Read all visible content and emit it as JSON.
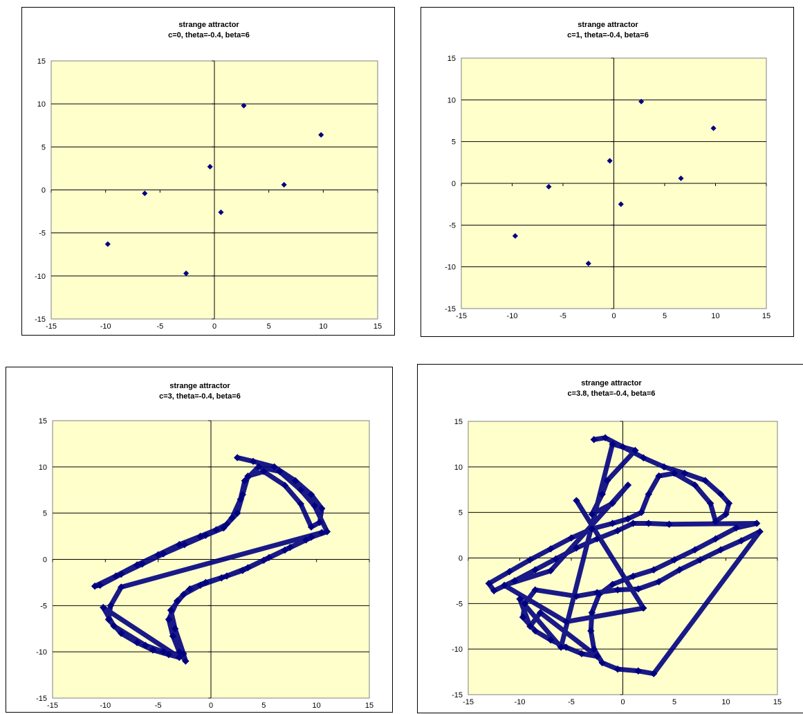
{
  "chart_data": [
    {
      "type": "scatter",
      "title": "strange attractor",
      "subtitle": "c=0,  theta=-0.4, beta=6",
      "xlim": [
        -15,
        15
      ],
      "ylim": [
        -15,
        15
      ],
      "xticks": [
        -15,
        -10,
        -5,
        0,
        5,
        10,
        15
      ],
      "yticks": [
        -15,
        -10,
        -5,
        0,
        5,
        10,
        15
      ],
      "grid": "horizontal",
      "plot_color": "#ffffcc",
      "marker_color": "#000080",
      "points": [
        [
          2.7,
          9.8
        ],
        [
          9.8,
          6.4
        ],
        [
          -0.4,
          2.7
        ],
        [
          6.4,
          0.6
        ],
        [
          -6.4,
          -0.4
        ],
        [
          0.6,
          -2.6
        ],
        [
          -9.8,
          -6.3
        ],
        [
          -2.6,
          -9.7
        ]
      ]
    },
    {
      "type": "scatter",
      "title": "strange attractor",
      "subtitle": "c=1,  theta=-0.4, beta=6",
      "xlim": [
        -15,
        15
      ],
      "ylim": [
        -15,
        15
      ],
      "xticks": [
        -15,
        -10,
        -5,
        0,
        5,
        10,
        15
      ],
      "yticks": [
        -15,
        -10,
        -5,
        0,
        5,
        10,
        15
      ],
      "grid": "horizontal",
      "plot_color": "#ffffcc",
      "marker_color": "#000080",
      "points": [
        [
          2.7,
          9.8
        ],
        [
          9.8,
          6.6
        ],
        [
          -0.4,
          2.7
        ],
        [
          6.6,
          0.6
        ],
        [
          -6.4,
          -0.4
        ],
        [
          0.7,
          -2.5
        ],
        [
          -9.7,
          -6.3
        ],
        [
          -2.5,
          -9.6
        ]
      ]
    },
    {
      "type": "scatter",
      "title": "strange attractor",
      "subtitle": "c=3,  theta=-0.4, beta=6",
      "xlim": [
        -15,
        15
      ],
      "ylim": [
        -15,
        15
      ],
      "xticks": [
        -15,
        -10,
        -5,
        0,
        5,
        10,
        15
      ],
      "yticks": [
        -15,
        -10,
        -5,
        0,
        5,
        10,
        15
      ],
      "grid": "horizontal",
      "plot_color": "#ffffcc",
      "marker_color": "#000080",
      "points": [
        [
          2.5,
          11
        ],
        [
          4,
          10.6
        ],
        [
          6,
          10
        ],
        [
          8,
          8.5
        ],
        [
          9.5,
          7
        ],
        [
          10.5,
          5.5
        ],
        [
          10.3,
          4
        ],
        [
          9.5,
          3.5
        ],
        [
          8.5,
          6
        ],
        [
          7,
          8
        ],
        [
          5,
          9.5
        ],
        [
          3.5,
          9
        ],
        [
          3,
          7
        ],
        [
          2.5,
          5
        ],
        [
          1.5,
          3.8
        ],
        [
          0.5,
          3.2
        ],
        [
          -1,
          2.5
        ],
        [
          -3,
          1.6
        ],
        [
          -5,
          0.5
        ],
        [
          -7,
          -0.6
        ],
        [
          -9,
          -1.8
        ],
        [
          -11,
          -2.9
        ],
        [
          -10.5,
          -2.8
        ],
        [
          -8.5,
          -1.6
        ],
        [
          -6.5,
          -0.5
        ],
        [
          -4.5,
          0.6
        ],
        [
          -2.5,
          1.6
        ],
        [
          -0.5,
          2.6
        ],
        [
          1.2,
          3.4
        ],
        [
          2,
          4.5
        ],
        [
          2.8,
          6.5
        ],
        [
          3.2,
          8.5
        ],
        [
          4.5,
          10
        ],
        [
          6.5,
          9.5
        ],
        [
          8.5,
          7.5
        ],
        [
          9.8,
          5.8
        ],
        [
          11,
          3
        ],
        [
          9.5,
          2.4
        ],
        [
          7.5,
          1.3
        ],
        [
          5.5,
          0.2
        ],
        [
          3.5,
          -0.9
        ],
        [
          1.5,
          -1.8
        ],
        [
          -0.5,
          -2.5
        ],
        [
          -2,
          -3.2
        ],
        [
          -3.2,
          -4.5
        ],
        [
          -4,
          -6.5
        ],
        [
          -3.6,
          -8.3
        ],
        [
          -3,
          -10
        ],
        [
          -2.4,
          -11
        ],
        [
          -2.6,
          -10.2
        ],
        [
          -3.4,
          -7.5
        ],
        [
          -3.8,
          -5.5
        ],
        [
          -2.6,
          -3.8
        ],
        [
          -1,
          -2.8
        ],
        [
          1,
          -2
        ],
        [
          3,
          -1.2
        ],
        [
          5,
          -0.1
        ],
        [
          7,
          1
        ],
        [
          9,
          2.1
        ],
        [
          10.5,
          2.9
        ],
        [
          -8.5,
          -3
        ],
        [
          -9.5,
          -5
        ],
        [
          -9.7,
          -6.5
        ],
        [
          -8.5,
          -8
        ],
        [
          -7,
          -9
        ],
        [
          -5.5,
          -9.8
        ],
        [
          -4,
          -10.3
        ],
        [
          -3,
          -10.6
        ],
        [
          -10.2,
          -5.2
        ],
        [
          -9.2,
          -7.2
        ],
        [
          -6.2,
          -9.3
        ],
        [
          -4.5,
          -10
        ]
      ]
    },
    {
      "type": "scatter",
      "title": "strange attractor",
      "subtitle": "c=3.8,  theta=-0.4, beta=6",
      "xlim": [
        -15,
        15
      ],
      "ylim": [
        -15,
        15
      ],
      "xticks": [
        -15,
        -10,
        -5,
        0,
        5,
        10,
        15
      ],
      "yticks": [
        -15,
        -10,
        -5,
        0,
        5,
        10,
        15
      ],
      "grid": "horizontal",
      "plot_color": "#ffffcc",
      "marker_color": "#000080",
      "points": [
        [
          -2.8,
          13
        ],
        [
          -1.7,
          13.2
        ],
        [
          0,
          12.2
        ],
        [
          2,
          11
        ],
        [
          4,
          10
        ],
        [
          6,
          9.3
        ],
        [
          8,
          8.5
        ],
        [
          9.5,
          7
        ],
        [
          10.3,
          6
        ],
        [
          10,
          4.8
        ],
        [
          9,
          4
        ],
        [
          8.5,
          6
        ],
        [
          7,
          8
        ],
        [
          5,
          9.3
        ],
        [
          3.5,
          9
        ],
        [
          2.5,
          7
        ],
        [
          1.8,
          5
        ],
        [
          0.5,
          4.3
        ],
        [
          -1,
          3.8
        ],
        [
          -3,
          3.2
        ],
        [
          -5,
          2.2
        ],
        [
          -7,
          1
        ],
        [
          -9,
          -0.2
        ],
        [
          -11,
          -1.5
        ],
        [
          -13,
          -2.8
        ],
        [
          -12.5,
          -3.6
        ],
        [
          -10.5,
          -2.5
        ],
        [
          -8.5,
          -1.3
        ],
        [
          -6.5,
          -0.1
        ],
        [
          -4.5,
          1.1
        ],
        [
          -2.5,
          2.1
        ],
        [
          -0.5,
          3
        ],
        [
          1,
          3.8
        ],
        [
          2.5,
          3.8
        ],
        [
          4.5,
          3.7
        ],
        [
          13,
          3.8
        ],
        [
          11,
          3.3
        ],
        [
          9,
          2.1
        ],
        [
          7,
          0.9
        ],
        [
          5,
          -0.2
        ],
        [
          3,
          -1.3
        ],
        [
          1,
          -2
        ],
        [
          -1,
          -2.9
        ],
        [
          -2.3,
          -4
        ],
        [
          -3,
          -6
        ],
        [
          -3.1,
          -8
        ],
        [
          -2.8,
          -10
        ],
        [
          -2,
          -11.5
        ],
        [
          -0.5,
          -12.2
        ],
        [
          1.5,
          -12.4
        ],
        [
          3,
          -12.7
        ],
        [
          13.3,
          2.9
        ],
        [
          11.5,
          1.9
        ],
        [
          9.5,
          0.9
        ],
        [
          7.5,
          -0.2
        ],
        [
          5.5,
          -1.3
        ],
        [
          3.5,
          -2.6
        ],
        [
          1.5,
          -3.4
        ],
        [
          -0.5,
          -3.5
        ],
        [
          -2.5,
          -3.8
        ],
        [
          -4.5,
          -4.2
        ],
        [
          -8.5,
          -3.5
        ],
        [
          -9.5,
          -5
        ],
        [
          -9.7,
          -6.5
        ],
        [
          -8.5,
          -8
        ],
        [
          -7,
          -9
        ],
        [
          -5.5,
          -9.8
        ],
        [
          -4,
          -10.5
        ],
        [
          -2.5,
          -10.8
        ],
        [
          -8,
          -6
        ],
        [
          -9,
          -7.5
        ],
        [
          -10,
          -4.5
        ],
        [
          -6,
          -9.8
        ],
        [
          -1,
          12.5
        ],
        [
          1.2,
          11.8
        ],
        [
          -1.5,
          8.5
        ],
        [
          -2,
          7
        ],
        [
          -3,
          4.8
        ],
        [
          -1,
          6
        ],
        [
          0.5,
          8
        ],
        [
          -7,
          -1.4
        ],
        [
          -11.5,
          -3
        ],
        [
          -5.5,
          -7
        ],
        [
          2,
          -5.5
        ],
        [
          -4.5,
          6.3
        ]
      ]
    }
  ]
}
